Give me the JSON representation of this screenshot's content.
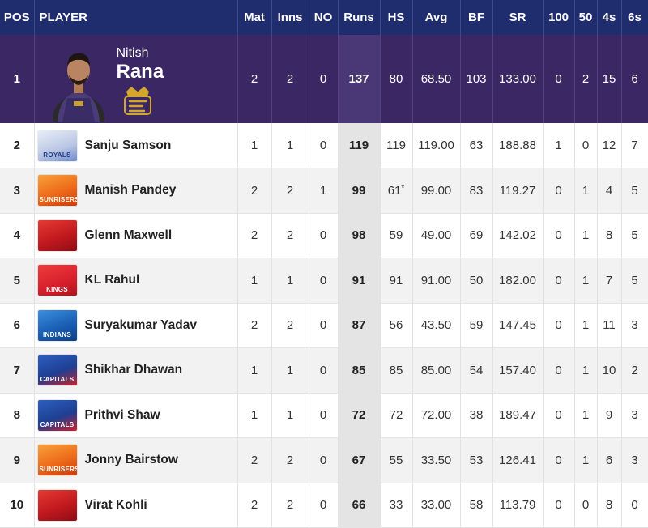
{
  "headers": {
    "pos": "POS",
    "player": "PLAYER",
    "mat": "Mat",
    "inns": "Inns",
    "no": "NO",
    "runs": "Runs",
    "hs": "HS",
    "avg": "Avg",
    "bf": "BF",
    "sr": "SR",
    "hundreds": "100",
    "fifties": "50",
    "fours": "4s",
    "sixes": "6s"
  },
  "leader": {
    "pos": "1",
    "first_name": "Nitish",
    "last_name": "Rana",
    "team_icon": "kkr-logo",
    "mat": "2",
    "inns": "2",
    "no": "0",
    "runs": "137",
    "hs": "80",
    "avg": "68.50",
    "bf": "103",
    "sr": "133.00",
    "hundreds": "0",
    "fifties": "2",
    "fours": "15",
    "sixes": "6"
  },
  "rows": [
    {
      "pos": "2",
      "name": "Sanju Samson",
      "team": "rr",
      "logo_text": "ROYALS",
      "mat": "1",
      "inns": "1",
      "no": "0",
      "runs": "119",
      "hs": "119",
      "hs_star": "",
      "avg": "119.00",
      "bf": "63",
      "sr": "188.88",
      "hundreds": "1",
      "fifties": "0",
      "fours": "12",
      "sixes": "7"
    },
    {
      "pos": "3",
      "name": "Manish Pandey",
      "team": "srh",
      "logo_text": "SUNRISERS",
      "mat": "2",
      "inns": "2",
      "no": "1",
      "runs": "99",
      "hs": "61",
      "hs_star": "*",
      "avg": "99.00",
      "bf": "83",
      "sr": "119.27",
      "hundreds": "0",
      "fifties": "1",
      "fours": "4",
      "sixes": "5"
    },
    {
      "pos": "4",
      "name": "Glenn Maxwell",
      "team": "rcb",
      "logo_text": "",
      "mat": "2",
      "inns": "2",
      "no": "0",
      "runs": "98",
      "hs": "59",
      "hs_star": "",
      "avg": "49.00",
      "bf": "69",
      "sr": "142.02",
      "hundreds": "0",
      "fifties": "1",
      "fours": "8",
      "sixes": "5"
    },
    {
      "pos": "5",
      "name": "KL Rahul",
      "team": "pbks",
      "logo_text": "KINGS",
      "mat": "1",
      "inns": "1",
      "no": "0",
      "runs": "91",
      "hs": "91",
      "hs_star": "",
      "avg": "91.00",
      "bf": "50",
      "sr": "182.00",
      "hundreds": "0",
      "fifties": "1",
      "fours": "7",
      "sixes": "5"
    },
    {
      "pos": "6",
      "name": "Suryakumar Yadav",
      "team": "mi",
      "logo_text": "INDIANS",
      "mat": "2",
      "inns": "2",
      "no": "0",
      "runs": "87",
      "hs": "56",
      "hs_star": "",
      "avg": "43.50",
      "bf": "59",
      "sr": "147.45",
      "hundreds": "0",
      "fifties": "1",
      "fours": "11",
      "sixes": "3"
    },
    {
      "pos": "7",
      "name": "Shikhar Dhawan",
      "team": "dc",
      "logo_text": "CAPITALS",
      "mat": "1",
      "inns": "1",
      "no": "0",
      "runs": "85",
      "hs": "85",
      "hs_star": "",
      "avg": "85.00",
      "bf": "54",
      "sr": "157.40",
      "hundreds": "0",
      "fifties": "1",
      "fours": "10",
      "sixes": "2"
    },
    {
      "pos": "8",
      "name": "Prithvi Shaw",
      "team": "dc",
      "logo_text": "CAPITALS",
      "mat": "1",
      "inns": "1",
      "no": "0",
      "runs": "72",
      "hs": "72",
      "hs_star": "",
      "avg": "72.00",
      "bf": "38",
      "sr": "189.47",
      "hundreds": "0",
      "fifties": "1",
      "fours": "9",
      "sixes": "3"
    },
    {
      "pos": "9",
      "name": "Jonny Bairstow",
      "team": "srh",
      "logo_text": "SUNRISERS",
      "mat": "2",
      "inns": "2",
      "no": "0",
      "runs": "67",
      "hs": "55",
      "hs_star": "",
      "avg": "33.50",
      "bf": "53",
      "sr": "126.41",
      "hundreds": "0",
      "fifties": "1",
      "fours": "6",
      "sixes": "3"
    },
    {
      "pos": "10",
      "name": "Virat Kohli",
      "team": "rcb",
      "logo_text": "",
      "mat": "2",
      "inns": "2",
      "no": "0",
      "runs": "66",
      "hs": "33",
      "hs_star": "",
      "avg": "33.00",
      "bf": "58",
      "sr": "113.79",
      "hundreds": "0",
      "fifties": "0",
      "fours": "8",
      "sixes": "0"
    }
  ],
  "colors": {
    "header_bg": "#1f2d6e",
    "leader_bg": "#3a2763",
    "runs_col_bg": "#e4e4e4"
  }
}
